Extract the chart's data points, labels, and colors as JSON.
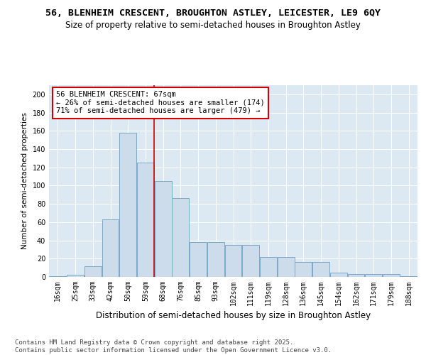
{
  "title_line1": "56, BLENHEIM CRESCENT, BROUGHTON ASTLEY, LEICESTER, LE9 6QY",
  "title_line2": "Size of property relative to semi-detached houses in Broughton Astley",
  "xlabel": "Distribution of semi-detached houses by size in Broughton Astley",
  "ylabel": "Number of semi-detached properties",
  "categories": [
    "16sqm",
    "25sqm",
    "33sqm",
    "42sqm",
    "50sqm",
    "59sqm",
    "68sqm",
    "76sqm",
    "85sqm",
    "93sqm",
    "102sqm",
    "111sqm",
    "119sqm",
    "128sqm",
    "136sqm",
    "145sqm",
    "154sqm",
    "162sqm",
    "171sqm",
    "179sqm",
    "188sqm"
  ],
  "values": [
    1,
    2,
    12,
    63,
    158,
    125,
    105,
    86,
    38,
    38,
    35,
    35,
    22,
    22,
    16,
    16,
    5,
    3,
    3,
    3,
    1
  ],
  "bar_color": "#cddceb",
  "bar_edge_color": "#7aaac8",
  "property_line_color": "#cc0000",
  "property_line_index": 5.5,
  "annotation_text": "56 BLENHEIM CRESCENT: 67sqm\n← 26% of semi-detached houses are smaller (174)\n71% of semi-detached houses are larger (479) →",
  "annotation_box_facecolor": "#ffffff",
  "annotation_box_edgecolor": "#cc0000",
  "ylim": [
    0,
    210
  ],
  "yticks": [
    0,
    20,
    40,
    60,
    80,
    100,
    120,
    140,
    160,
    180,
    200
  ],
  "plot_bg_color": "#dce8f2",
  "fig_bg_color": "#ffffff",
  "footer_text": "Contains HM Land Registry data © Crown copyright and database right 2025.\nContains public sector information licensed under the Open Government Licence v3.0.",
  "title_fontsize": 9.5,
  "subtitle_fontsize": 8.5,
  "xlabel_fontsize": 8.5,
  "ylabel_fontsize": 7.5,
  "tick_fontsize": 7,
  "annotation_fontsize": 7.5,
  "footer_fontsize": 6.5
}
